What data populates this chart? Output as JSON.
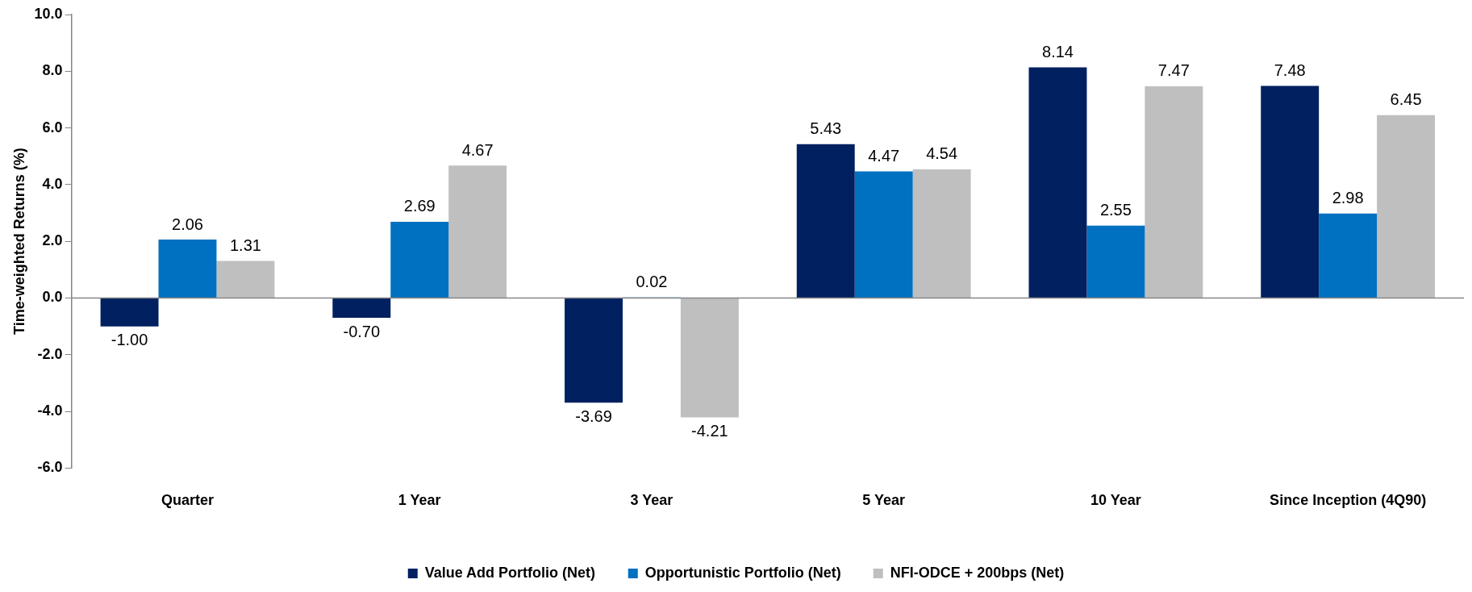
{
  "chart_data": {
    "type": "bar",
    "ylabel": "Time-weighted Returns (%)",
    "categories": [
      "Quarter",
      "1 Year",
      "3 Year",
      "5 Year",
      "10 Year",
      "Since Inception (4Q90)"
    ],
    "series": [
      {
        "name": "Value Add Portfolio (Net)",
        "color": "#002060",
        "values": [
          -1.0,
          -0.7,
          -3.69,
          5.43,
          8.14,
          7.48
        ],
        "value_labels": [
          "-1.00",
          "-0.70",
          "-3.69",
          "5.43",
          "8.14",
          "7.48"
        ]
      },
      {
        "name": "Opportunistic Portfolio (Net)",
        "color": "#0070c0",
        "values": [
          2.06,
          2.69,
          0.02,
          4.47,
          2.55,
          2.98
        ],
        "value_labels": [
          "2.06",
          "2.69",
          "0.02",
          "4.47",
          "2.55",
          "2.98"
        ]
      },
      {
        "name": "NFI-ODCE + 200bps (Net)",
        "color": "#bfbfbf",
        "values": [
          1.31,
          4.67,
          -4.21,
          4.54,
          7.47,
          6.45
        ],
        "value_labels": [
          "1.31",
          "4.67",
          "-4.21",
          "4.54",
          "7.47",
          "6.45"
        ]
      }
    ],
    "ylim": [
      -6,
      10
    ],
    "yticks": [
      {
        "value": -6,
        "label": "-6.0"
      },
      {
        "value": -4,
        "label": "-4.0"
      },
      {
        "value": -2,
        "label": "-2.0"
      },
      {
        "value": 0,
        "label": "0.0"
      },
      {
        "value": 2,
        "label": "2.0"
      },
      {
        "value": 4,
        "label": "4.0"
      },
      {
        "value": 6,
        "label": "6.0"
      },
      {
        "value": 8,
        "label": "8.0"
      },
      {
        "value": 10,
        "label": "10.0"
      }
    ],
    "ref_lines": [
      {
        "axis": "y",
        "value": 0,
        "color": "#868686"
      }
    ],
    "grid": false,
    "legend": "bottom"
  }
}
